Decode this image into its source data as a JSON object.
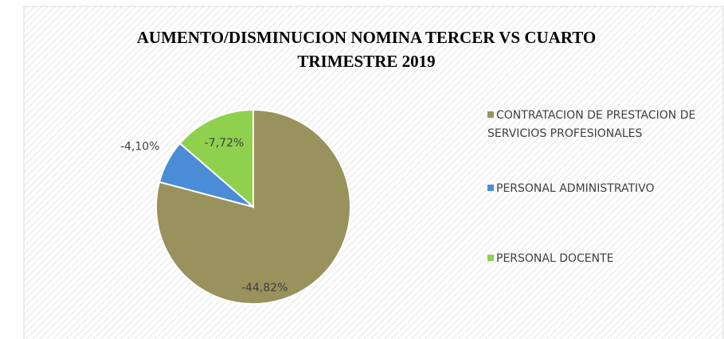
{
  "chart_data": {
    "type": "pie",
    "title": "AUMENTO/DISMINUCION NOMINA TERCER VS CUARTO TRIMESTRE 2019",
    "categories": [
      "CONTRATACION DE PRESTACION DE SERVICIOS PROFESIONALES",
      "PERSONAL ADMINISTRATIVO",
      "PERSONAL DOCENTE"
    ],
    "values": [
      -44.82,
      -4.1,
      -7.72
    ],
    "value_labels": [
      "-44,82%",
      "-4,10%",
      "-7,72%"
    ],
    "colors": [
      "#9a925c",
      "#4b8cd6",
      "#8fd14f"
    ],
    "legend": "right"
  }
}
